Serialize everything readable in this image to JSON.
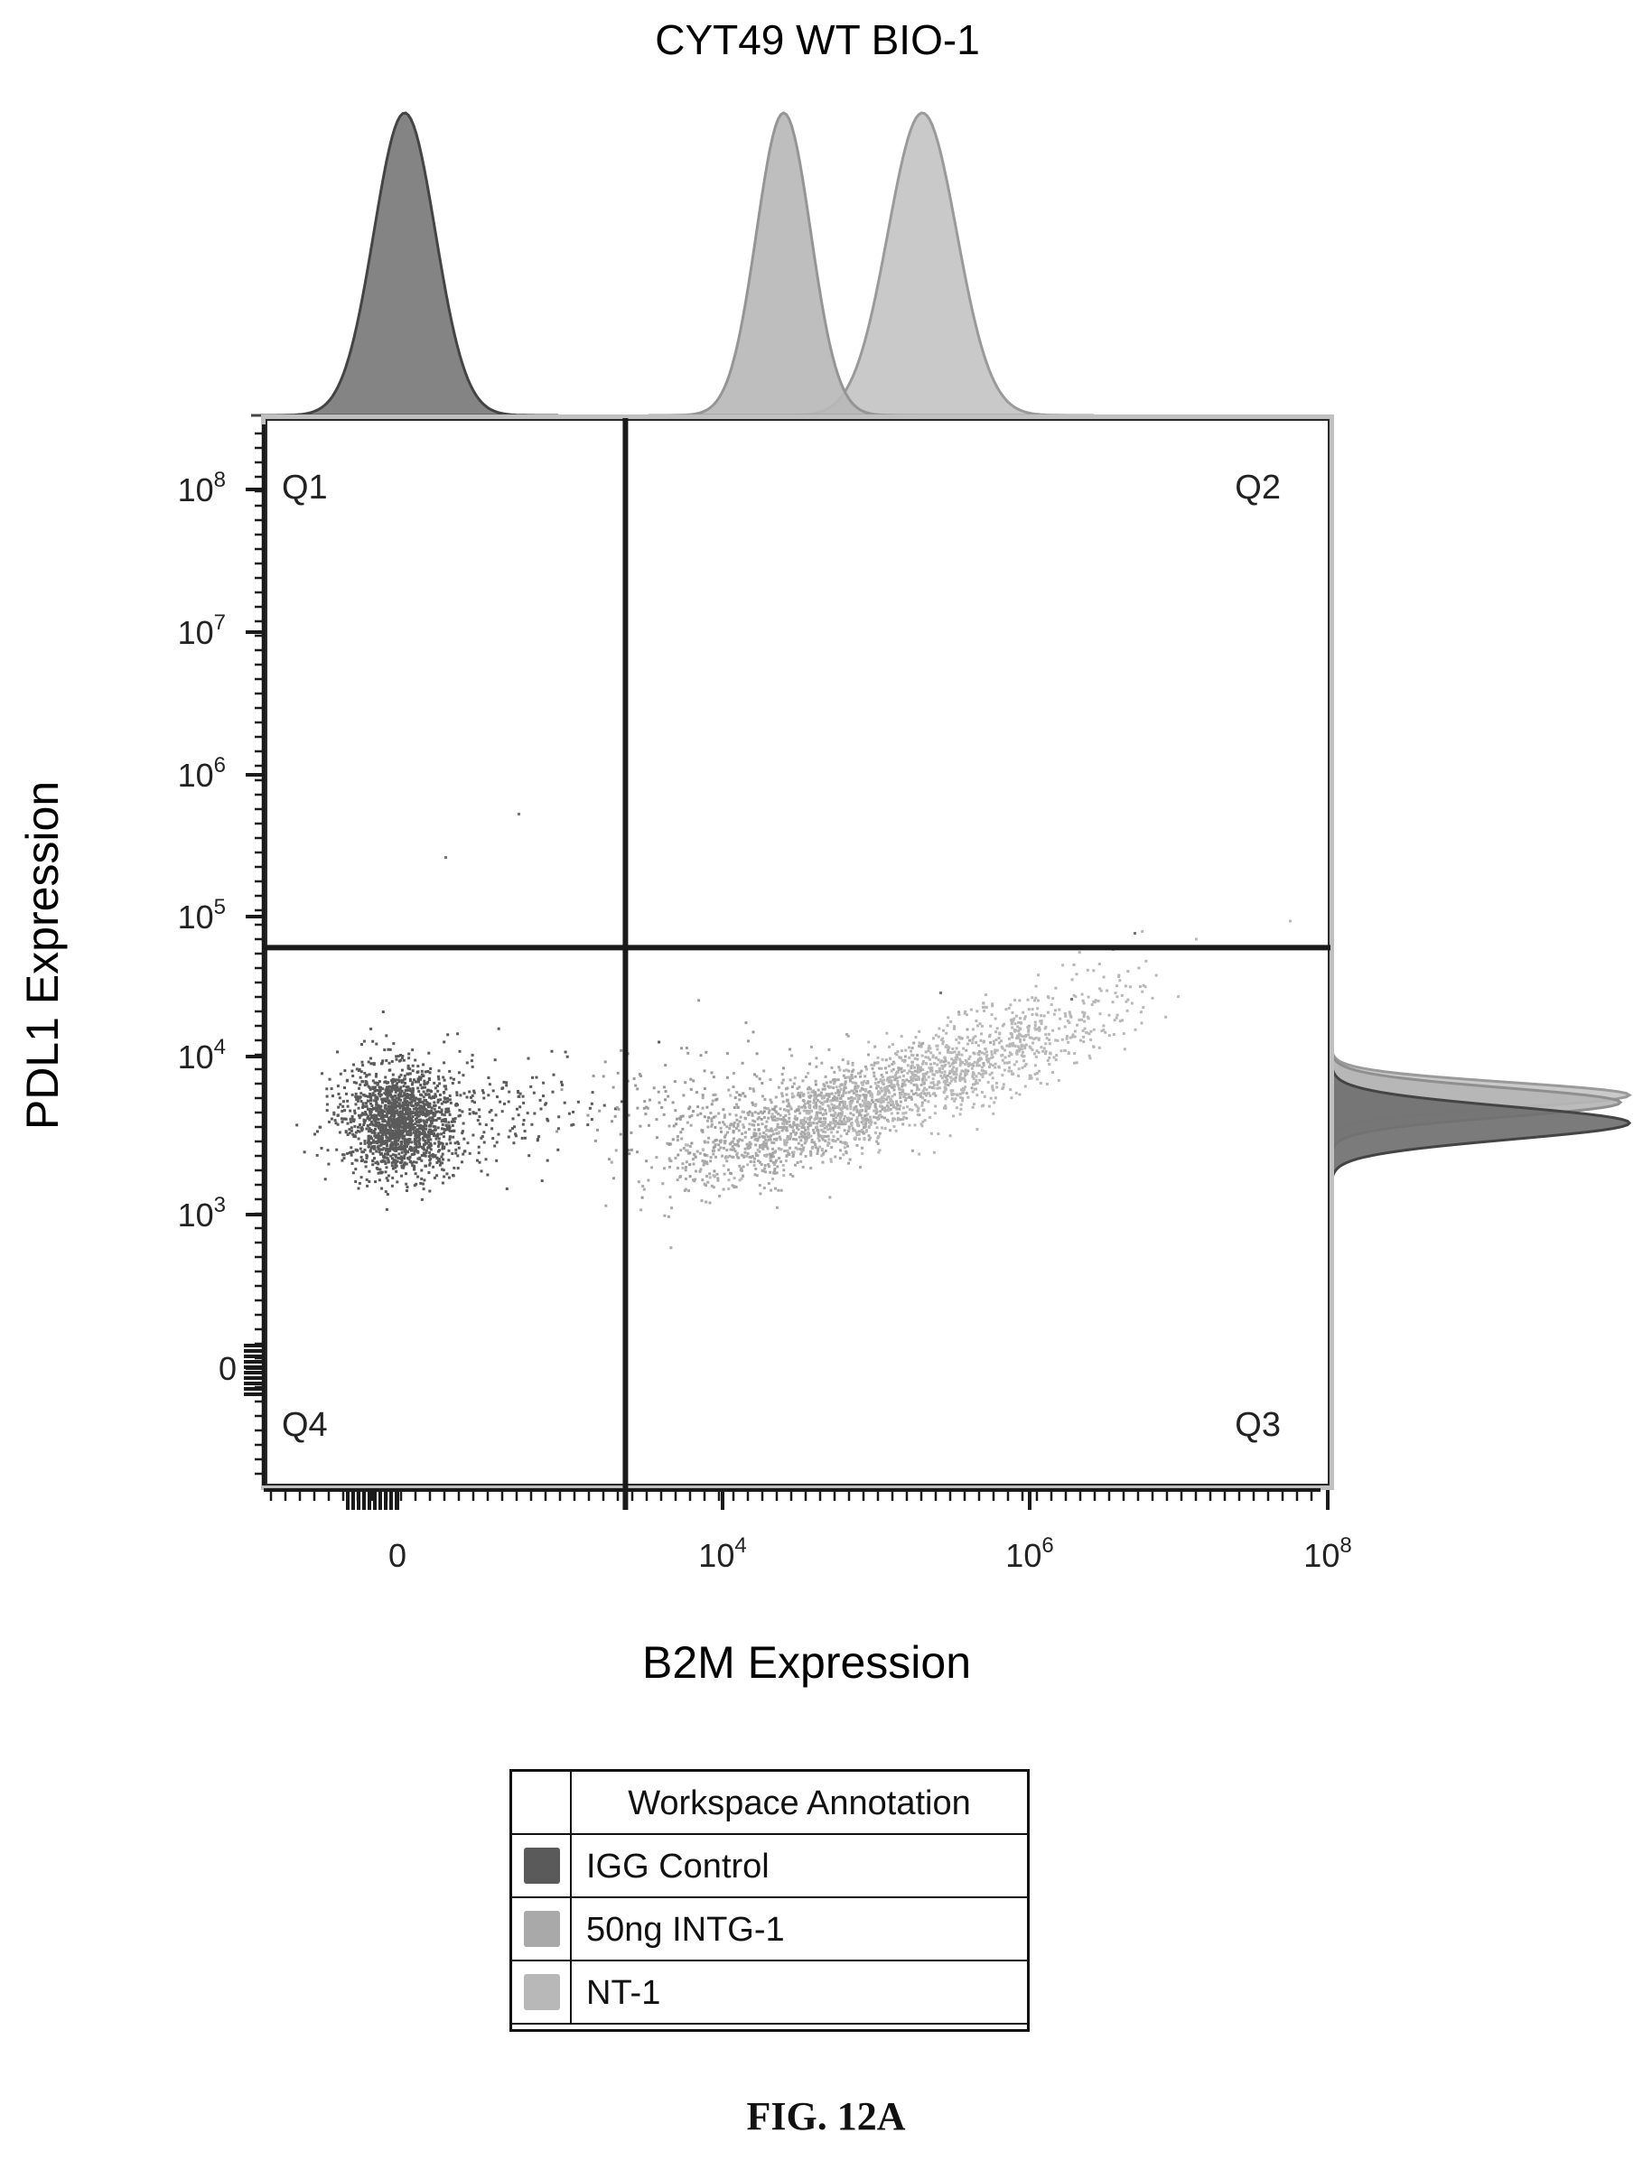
{
  "chart_data": {
    "type": "scatter",
    "title": "CYT49 WT BIO-1",
    "xlabel": "B2M Expression",
    "ylabel": "PDL1 Expression",
    "x_scale": "biexponential",
    "y_scale": "biexponential",
    "x_ticks": [
      {
        "value": 0,
        "base": "0",
        "exp": ""
      },
      {
        "value": 10000,
        "base": "10",
        "exp": "4"
      },
      {
        "value": 1000000,
        "base": "10",
        "exp": "6"
      },
      {
        "value": 100000000,
        "base": "10",
        "exp": "8"
      }
    ],
    "y_ticks": [
      {
        "value": 0,
        "base": "0",
        "exp": ""
      },
      {
        "value": 1000,
        "base": "10",
        "exp": "3"
      },
      {
        "value": 10000,
        "base": "10",
        "exp": "4"
      },
      {
        "value": 100000,
        "base": "10",
        "exp": "5"
      },
      {
        "value": 1000000,
        "base": "10",
        "exp": "6"
      },
      {
        "value": 10000000,
        "base": "10",
        "exp": "7"
      },
      {
        "value": 100000000,
        "base": "10",
        "exp": "8"
      }
    ],
    "gates": {
      "x_threshold": 1600,
      "y_threshold": 60000,
      "quadrants": [
        "Q1",
        "Q2",
        "Q3",
        "Q4"
      ]
    },
    "series": [
      {
        "name": "IGG Control",
        "color": "#5a5a5a",
        "x_center": 0,
        "y_center": 4000,
        "histogram_peak_x": 0,
        "histogram_peak_y": 4000
      },
      {
        "name": "50ng INTG-1",
        "color": "#a9a9a9",
        "x_center": 60000,
        "y_center": 5000,
        "histogram_peak_x": 25000,
        "histogram_peak_y": 6000
      },
      {
        "name": "NT-1",
        "color": "#b8b8b8",
        "x_center": 150000,
        "y_center": 6000,
        "histogram_peak_x": 200000,
        "histogram_peak_y": 6500
      }
    ],
    "legend": {
      "placement": "bottom",
      "header": "Workspace Annotation",
      "entries": [
        "IGG Control",
        "50ng INTG-1",
        "NT-1"
      ]
    }
  },
  "figure_caption": "FIG. 12A",
  "colors": {
    "axis": "#1a1a1a",
    "gate": "#1a1a1a",
    "igg": "#5a5a5a",
    "intg": "#a9a9a9",
    "nt": "#b8b8b8"
  }
}
